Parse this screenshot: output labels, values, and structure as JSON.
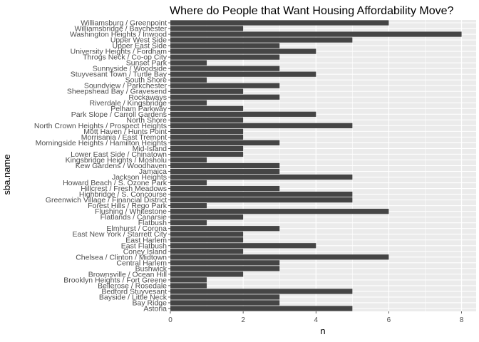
{
  "chart_data": {
    "type": "bar",
    "orientation": "horizontal",
    "title": "Where do People that Want Housing Affordability Move?",
    "xlabel": "n",
    "ylabel": "sba.name",
    "xlim": [
      0,
      8.4
    ],
    "xticks": [
      0,
      2,
      4,
      6,
      8
    ],
    "grid": true,
    "bar_color": "#454545",
    "panel_color": "#ebebeb",
    "categories": [
      "Williamsburg / Greenpoint",
      "Williamsbridge / Baychester",
      "Washington Heights / Inwood",
      "Upper West Side",
      "Upper East Side",
      "University Heights / Fordham",
      "Throgs Neck / Co-op City",
      "Sunset Park",
      "Sunnyside / Woodside",
      "Stuyvesant Town / Turtle Bay",
      "South Shore",
      "Soundview / Parkchester",
      "Sheepshead Bay / Gravesend",
      "Rockaways",
      "Riverdale / Kingsbridge",
      "Pelham Parkway",
      "Park Slope / Carroll Gardens",
      "North Shore",
      "North Crown Heights / Prospect Heights",
      "Mott Haven / Hunts Point",
      "Morrisania / East Tremont",
      "Morningside Heights / Hamilton Heights",
      "Mid-Island",
      "Lower East Side / Chinatown",
      "Kingsbridge Heights / Mosholu",
      "Kew Gardens / Woodhaven",
      "Jamaica",
      "Jackson Heights",
      "Howard Beach / S. Ozone Park",
      "Hillcrest / Fresh Meadows",
      "Highbridge / S. Concourse",
      "Greenwich Village / Financial District",
      "Forest Hills / Rego Park",
      "Flushing / Whitestone",
      "Flatlands / Canarsie",
      "Flatbush",
      "Elmhurst / Corona",
      "East New York / Starrett City",
      "East Harlem",
      "East Flatbush",
      "Coney Island",
      "Chelsea / Clinton / Midtown",
      "Central Harlem",
      "Bushwick",
      "Brownsville / Ocean Hill",
      "Brooklyn Heights / Fort Greene",
      "Bellerose / Rosedale",
      "Bedford Stuyvesant",
      "Bayside / Little Neck",
      "Bay Ridge",
      "Astoria"
    ],
    "values": [
      6,
      2,
      8,
      5,
      3,
      4,
      3,
      1,
      3,
      4,
      1,
      3,
      2,
      3,
      1,
      2,
      4,
      2,
      5,
      2,
      2,
      3,
      2,
      2,
      1,
      3,
      3,
      5,
      1,
      3,
      5,
      5,
      1,
      6,
      2,
      1,
      3,
      2,
      2,
      4,
      2,
      6,
      3,
      3,
      2,
      1,
      1,
      5,
      3,
      3,
      5
    ]
  }
}
